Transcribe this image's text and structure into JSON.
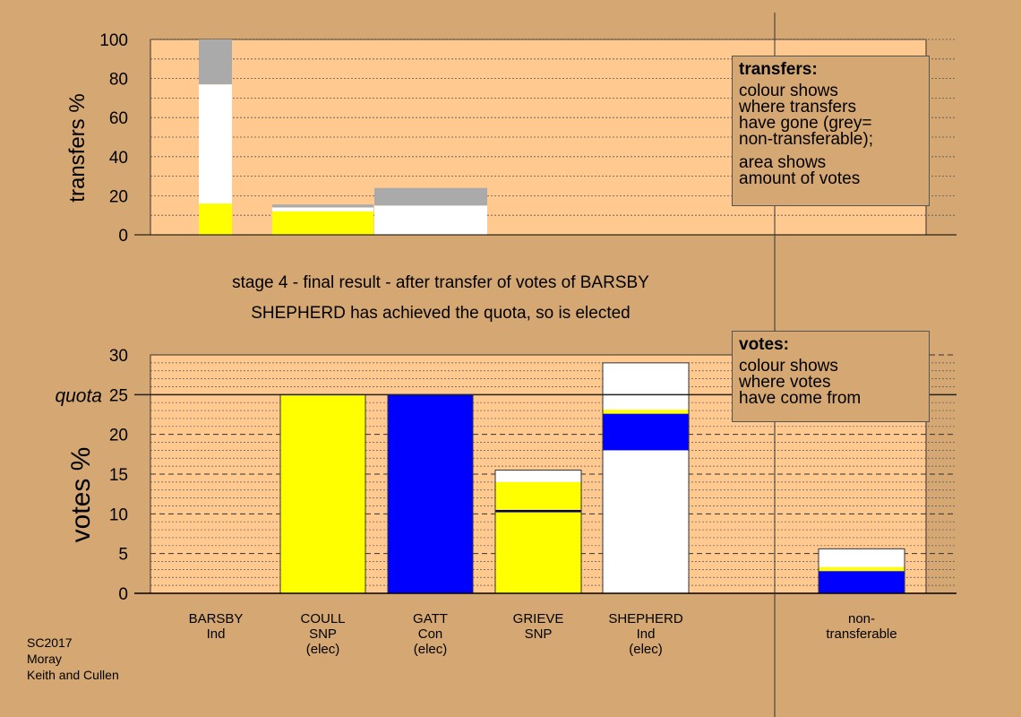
{
  "chart_data": [
    {
      "type": "bar",
      "stacked": true,
      "ylabel": "transfers %",
      "ylim": [
        0,
        100
      ],
      "yticks": [
        0,
        20,
        40,
        60,
        80,
        100
      ],
      "grid": "dotted",
      "bars": [
        {
          "segments": [
            {
              "value": 16,
              "color": "#ffff00"
            },
            {
              "value": 61,
              "color": "#ffffff"
            },
            {
              "value": 23,
              "color": "#aaaaaa"
            }
          ]
        },
        {
          "segments": [
            {
              "value": 12,
              "color": "#ffff00"
            },
            {
              "value": 2,
              "color": "#ffffff"
            },
            {
              "value": 1.5,
              "color": "#aaaaaa"
            }
          ]
        },
        {
          "segments": [
            {
              "value": 15,
              "color": "#ffffff"
            },
            {
              "value": 9,
              "color": "#aaaaaa"
            }
          ]
        }
      ]
    },
    {
      "type": "bar",
      "stacked": true,
      "ylabel": "votes %",
      "ylim": [
        0,
        30
      ],
      "yticks": [
        0,
        5,
        10,
        15,
        20,
        25,
        30
      ],
      "quota": 25,
      "quota_label": "quota",
      "categories": [
        "BARSBY\nInd",
        "COULL\nSNP\n(elec)",
        "GATT\nCon\n(elec)",
        "GRIEVE\nSNP",
        "SHEPHERD\nInd\n(elec)",
        "non-\ntransferable"
      ],
      "bars": [
        {
          "category": 0,
          "segments": []
        },
        {
          "category": 1,
          "segments": [
            {
              "value": 25,
              "color": "#ffff00"
            }
          ]
        },
        {
          "category": 2,
          "segments": [
            {
              "value": 25,
              "color": "#0000ff"
            }
          ]
        },
        {
          "category": 3,
          "segments": [
            {
              "value": 10.2,
              "color": "#ffff00"
            },
            {
              "value": 0.3,
              "color": "#000066"
            },
            {
              "value": 3.5,
              "color": "#ffff00"
            },
            {
              "value": 1.5,
              "color": "#ffffff"
            }
          ]
        },
        {
          "category": 4,
          "segments": [
            {
              "value": 18,
              "color": "#ffffff"
            },
            {
              "value": 4.6,
              "color": "#0000ff"
            },
            {
              "value": 0.5,
              "color": "#ffff00"
            },
            {
              "value": 5.9,
              "color": "#ffffff"
            }
          ]
        },
        {
          "category": 5,
          "segments": [
            {
              "value": 2.8,
              "color": "#0000ff"
            },
            {
              "value": 0.5,
              "color": "#ffff00"
            },
            {
              "value": 2.3,
              "color": "#ffffff"
            }
          ]
        }
      ]
    }
  ],
  "legend_transfers": {
    "title": "transfers:",
    "line1": "colour shows",
    "line2": "where transfers",
    "line3": "have gone (grey=",
    "line4": "non-transferable);",
    "line5": "area shows",
    "line6": "amount of votes"
  },
  "legend_votes": {
    "title": "votes:",
    "line1": "colour shows",
    "line2": "where votes",
    "line3": "have come from"
  },
  "caption": {
    "line1": "stage 4 - final result - after transfer of votes of BARSBY",
    "line2": "SHEPHERD has achieved the quota, so is elected"
  },
  "footer": {
    "line1": "SC2017",
    "line2": "Moray",
    "line3": "Keith and Cullen"
  },
  "colors": {
    "background": "#d4a773",
    "plot_area": "#ffc990",
    "snp": "#ffff00",
    "con": "#0000ff",
    "ind": "#ffffff",
    "non_transferable": "#aaaaaa"
  }
}
